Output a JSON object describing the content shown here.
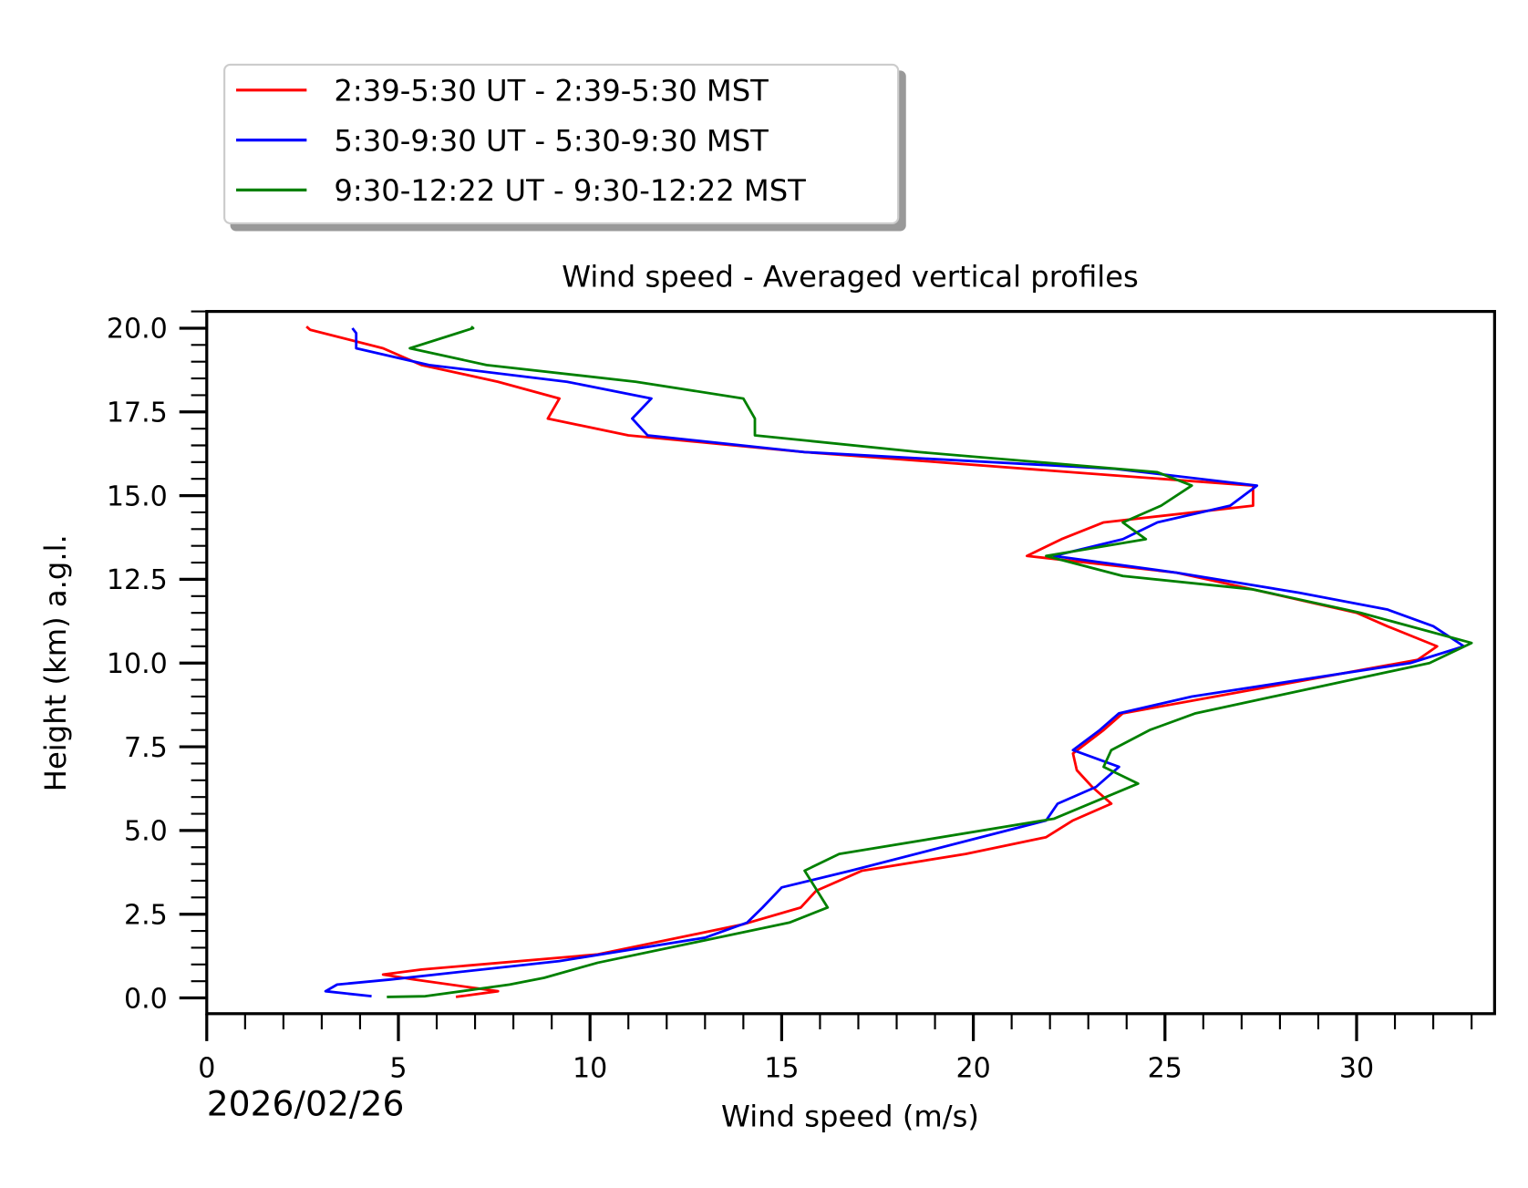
{
  "chart_data": {
    "type": "line",
    "title": "Wind speed - Averaged vertical profiles",
    "xlabel": "Wind speed (m/s)",
    "ylabel": "Height (km) a.g.l.",
    "date_label": "2026/02/26",
    "xlim": [
      0,
      33.6
    ],
    "ylim": [
      -0.47,
      20.5
    ],
    "x_ticks": [
      0,
      5,
      10,
      15,
      20,
      25,
      30
    ],
    "x_tick_labels": [
      "0",
      "5",
      "10",
      "15",
      "20",
      "25",
      "30"
    ],
    "y_ticks": [
      0.0,
      2.5,
      5.0,
      7.5,
      10.0,
      12.5,
      15.0,
      17.5,
      20.0
    ],
    "y_tick_labels": [
      "0.0",
      "2.5",
      "5.0",
      "7.5",
      "10.0",
      "12.5",
      "15.0",
      "17.5",
      "20.0"
    ],
    "grid": false,
    "legend_placement": "above-top-left",
    "series": [
      {
        "name": "2:39-5:30 UT - 2:39-5:30 MST",
        "color": "#ff0000",
        "points": [
          [
            2.6,
            20.05
          ],
          [
            2.7,
            19.95
          ],
          [
            4.6,
            19.4
          ],
          [
            5.6,
            18.9
          ],
          [
            7.6,
            18.4
          ],
          [
            9.2,
            17.9
          ],
          [
            8.9,
            17.3
          ],
          [
            11.0,
            16.8
          ],
          [
            15.6,
            16.3
          ],
          [
            23.7,
            15.6
          ],
          [
            27.3,
            15.3
          ],
          [
            27.3,
            14.7
          ],
          [
            23.4,
            14.2
          ],
          [
            22.3,
            13.7
          ],
          [
            21.4,
            13.2
          ],
          [
            25.3,
            12.7
          ],
          [
            27.3,
            12.2
          ],
          [
            30.0,
            11.5
          ],
          [
            30.8,
            11.1
          ],
          [
            32.1,
            10.5
          ],
          [
            31.6,
            10.1
          ],
          [
            23.9,
            8.5
          ],
          [
            23.4,
            8.0
          ],
          [
            22.6,
            7.3
          ],
          [
            22.7,
            6.8
          ],
          [
            23.1,
            6.3
          ],
          [
            23.6,
            5.8
          ],
          [
            22.6,
            5.3
          ],
          [
            21.9,
            4.8
          ],
          [
            19.8,
            4.3
          ],
          [
            17.1,
            3.8
          ],
          [
            15.9,
            3.2
          ],
          [
            15.5,
            2.7
          ],
          [
            14.0,
            2.2
          ],
          [
            10.2,
            1.3
          ],
          [
            5.6,
            0.85
          ],
          [
            4.6,
            0.7
          ],
          [
            5.4,
            0.55
          ],
          [
            7.6,
            0.2
          ],
          [
            6.5,
            0.03
          ]
        ]
      },
      {
        "name": "5:30-9:30 UT - 5:30-9:30 MST",
        "color": "#0000ff",
        "points": [
          [
            3.8,
            20.0
          ],
          [
            3.9,
            19.85
          ],
          [
            3.9,
            19.4
          ],
          [
            5.8,
            18.9
          ],
          [
            9.4,
            18.4
          ],
          [
            11.6,
            17.9
          ],
          [
            11.1,
            17.3
          ],
          [
            11.5,
            16.8
          ],
          [
            15.6,
            16.3
          ],
          [
            23.7,
            15.8
          ],
          [
            27.4,
            15.3
          ],
          [
            26.7,
            14.7
          ],
          [
            24.8,
            14.2
          ],
          [
            23.9,
            13.7
          ],
          [
            22.1,
            13.2
          ],
          [
            25.3,
            12.7
          ],
          [
            28.5,
            12.1
          ],
          [
            30.8,
            11.6
          ],
          [
            32.0,
            11.1
          ],
          [
            32.8,
            10.5
          ],
          [
            31.4,
            10.0
          ],
          [
            25.7,
            9.0
          ],
          [
            23.8,
            8.5
          ],
          [
            23.3,
            8.0
          ],
          [
            22.6,
            7.4
          ],
          [
            23.8,
            6.9
          ],
          [
            23.2,
            6.3
          ],
          [
            22.2,
            5.8
          ],
          [
            21.9,
            5.3
          ],
          [
            16.8,
            3.8
          ],
          [
            15.0,
            3.3
          ],
          [
            14.5,
            2.7
          ],
          [
            14.1,
            2.25
          ],
          [
            13.0,
            1.8
          ],
          [
            9.2,
            1.1
          ],
          [
            4.8,
            0.55
          ],
          [
            3.4,
            0.4
          ],
          [
            3.1,
            0.2
          ],
          [
            4.3,
            0.05
          ]
        ]
      },
      {
        "name": "9:30-12:22 UT - 9:30-12:22 MST",
        "color": "#008000",
        "points": [
          [
            6.9,
            20.05
          ],
          [
            6.95,
            20.0
          ],
          [
            5.3,
            19.4
          ],
          [
            7.3,
            18.9
          ],
          [
            11.2,
            18.4
          ],
          [
            14.0,
            17.9
          ],
          [
            14.3,
            17.3
          ],
          [
            14.3,
            16.8
          ],
          [
            18.6,
            16.3
          ],
          [
            24.8,
            15.7
          ],
          [
            25.7,
            15.3
          ],
          [
            24.9,
            14.7
          ],
          [
            23.9,
            14.2
          ],
          [
            24.5,
            13.7
          ],
          [
            21.9,
            13.2
          ],
          [
            23.9,
            12.6
          ],
          [
            27.3,
            12.2
          ],
          [
            30.1,
            11.5
          ],
          [
            33.0,
            10.6
          ],
          [
            31.9,
            10.0
          ],
          [
            25.8,
            8.5
          ],
          [
            24.6,
            8.0
          ],
          [
            23.6,
            7.4
          ],
          [
            23.4,
            6.9
          ],
          [
            24.3,
            6.4
          ],
          [
            22.1,
            5.35
          ],
          [
            16.5,
            4.3
          ],
          [
            15.6,
            3.8
          ],
          [
            16.2,
            2.7
          ],
          [
            15.2,
            2.25
          ],
          [
            10.2,
            1.05
          ],
          [
            8.8,
            0.6
          ],
          [
            7.9,
            0.4
          ],
          [
            5.7,
            0.05
          ],
          [
            4.7,
            0.03
          ]
        ]
      }
    ]
  }
}
